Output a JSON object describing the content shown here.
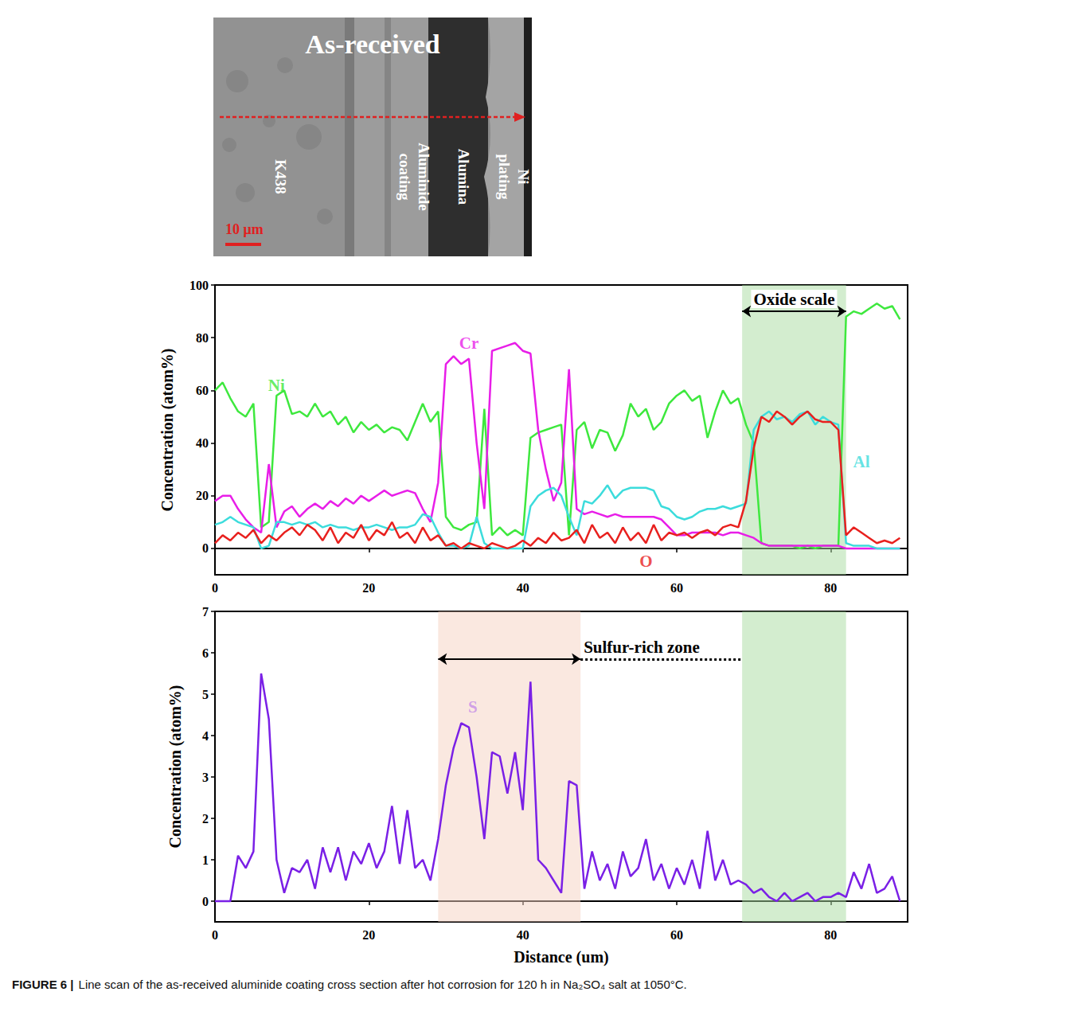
{
  "image": {
    "title": "As-received",
    "labels": [
      "K438",
      "Aluminide coating",
      "Alumina",
      "Ni plating"
    ],
    "scale_bar": "10 μm"
  },
  "caption": {
    "label": "FIGURE 6 |",
    "text": "Line scan of the as-received aluminide coating cross section after hot corrosion for 120 h in Na₂SO₄ salt at 1050°C."
  },
  "chart_data": [
    {
      "type": "line",
      "ylabel": "Concentration (atom%)",
      "xlim": [
        0,
        90
      ],
      "xticks": [
        0,
        20,
        40,
        60,
        80
      ],
      "ylim": [
        -10,
        100
      ],
      "yticks": [
        0,
        20,
        40,
        60,
        80,
        100
      ],
      "x": [
        0,
        1,
        2,
        3,
        4,
        5,
        6,
        7,
        8,
        9,
        10,
        11,
        12,
        13,
        14,
        15,
        16,
        17,
        18,
        19,
        20,
        21,
        22,
        23,
        24,
        25,
        26,
        27,
        28,
        29,
        30,
        31,
        32,
        33,
        34,
        35,
        36,
        37,
        38,
        39,
        40,
        41,
        42,
        43,
        44,
        45,
        46,
        47,
        48,
        49,
        50,
        51,
        52,
        53,
        54,
        55,
        56,
        57,
        58,
        59,
        60,
        61,
        62,
        63,
        64,
        65,
        66,
        67,
        68,
        69,
        70,
        71,
        72,
        73,
        74,
        75,
        76,
        77,
        78,
        79,
        80,
        81,
        82,
        83,
        84,
        85,
        86,
        87,
        88,
        89
      ],
      "series": [
        {
          "name": "Ni",
          "color": "#3ee83e",
          "values": [
            60,
            63,
            57,
            52,
            50,
            55,
            8,
            10,
            58,
            60,
            51,
            52,
            50,
            55,
            50,
            52,
            47,
            50,
            44,
            48,
            45,
            47,
            44,
            46,
            45,
            41,
            48,
            55,
            48,
            52,
            12,
            8,
            7,
            9,
            10,
            53,
            5,
            8,
            5,
            7,
            5,
            42,
            44,
            45,
            46,
            47,
            5,
            45,
            48,
            38,
            45,
            44,
            37,
            43,
            55,
            50,
            53,
            45,
            48,
            55,
            58,
            60,
            56,
            58,
            42,
            52,
            60,
            55,
            57,
            47,
            40,
            2,
            1,
            1,
            1,
            1,
            0,
            1,
            0,
            1,
            1,
            1,
            88,
            90,
            89,
            91,
            93,
            91,
            92,
            87
          ]
        },
        {
          "name": "Cr",
          "color": "#e81ee8",
          "values": [
            18,
            20,
            20,
            15,
            11,
            8,
            6,
            32,
            8,
            14,
            16,
            12,
            15,
            17,
            15,
            18,
            16,
            19,
            17,
            20,
            18,
            20,
            22,
            20,
            21,
            22,
            21,
            15,
            10,
            25,
            70,
            73,
            70,
            72,
            40,
            15,
            75,
            76,
            77,
            78,
            75,
            74,
            45,
            30,
            18,
            25,
            68,
            15,
            13,
            14,
            13,
            12,
            13,
            12,
            12,
            12,
            12,
            12,
            11,
            8,
            5,
            5,
            6,
            6,
            6,
            6,
            5,
            6,
            6,
            5,
            4,
            2,
            1,
            1,
            1,
            1,
            1,
            1,
            1,
            1,
            1,
            1,
            0,
            0,
            0,
            0,
            0,
            0,
            0,
            0
          ]
        },
        {
          "name": "Al",
          "color": "#3cdcdc",
          "values": [
            9,
            10,
            12,
            10,
            9,
            8,
            0,
            1,
            10,
            10,
            9,
            10,
            9,
            10,
            8,
            9,
            8,
            8,
            7,
            8,
            8,
            9,
            8,
            7,
            8,
            8,
            9,
            13,
            12,
            6,
            1,
            1,
            0,
            1,
            12,
            2,
            0,
            0,
            0,
            0,
            0,
            16,
            20,
            22,
            23,
            20,
            12,
            5,
            18,
            17,
            20,
            24,
            19,
            22,
            23,
            23,
            23,
            22,
            16,
            15,
            12,
            11,
            12,
            14,
            15,
            15,
            16,
            15,
            16,
            17,
            45,
            50,
            52,
            49,
            50,
            48,
            51,
            52,
            47,
            50,
            48,
            47,
            2,
            1,
            1,
            1,
            0,
            0,
            0,
            0
          ]
        },
        {
          "name": "O",
          "color": "#e8201e",
          "values": [
            2,
            5,
            3,
            6,
            4,
            7,
            2,
            5,
            3,
            6,
            8,
            5,
            9,
            7,
            3,
            8,
            2,
            6,
            4,
            9,
            3,
            7,
            5,
            10,
            4,
            6,
            2,
            8,
            3,
            5,
            1,
            2,
            0,
            2,
            1,
            0,
            2,
            1,
            0,
            1,
            3,
            1,
            4,
            2,
            6,
            3,
            4,
            7,
            2,
            9,
            4,
            6,
            2,
            8,
            3,
            6,
            2,
            9,
            3,
            6,
            5,
            6,
            4,
            6,
            7,
            5,
            8,
            9,
            8,
            18,
            38,
            50,
            48,
            52,
            50,
            47,
            50,
            52,
            49,
            48,
            48,
            45,
            5,
            8,
            6,
            4,
            2,
            3,
            2,
            4
          ]
        }
      ],
      "annotations": [
        {
          "text": "Ni",
          "x": 8,
          "y": 62,
          "color": "#3ee83e"
        },
        {
          "text": "Cr",
          "x": 33,
          "y": 78,
          "color": "#e81ee8"
        },
        {
          "text": "Al",
          "x": 84,
          "y": 33,
          "color": "#3cdcdc"
        },
        {
          "text": "O",
          "x": 56,
          "y": -5,
          "color": "#e8201e"
        }
      ],
      "regions": [
        {
          "label": "Oxide scale",
          "x": [
            68.5,
            82
          ],
          "color": "#a8dca0",
          "arrow_y": 90
        }
      ]
    },
    {
      "type": "line",
      "ylabel": "Concentration (atom%)",
      "xlabel": "Distance (um)",
      "xlim": [
        0,
        90
      ],
      "xticks": [
        0,
        20,
        40,
        60,
        80
      ],
      "ylim": [
        -0.5,
        7
      ],
      "yticks": [
        0,
        1,
        2,
        3,
        4,
        5,
        6,
        7
      ],
      "x": [
        0,
        1,
        2,
        3,
        4,
        5,
        6,
        7,
        8,
        9,
        10,
        11,
        12,
        13,
        14,
        15,
        16,
        17,
        18,
        19,
        20,
        21,
        22,
        23,
        24,
        25,
        26,
        27,
        28,
        29,
        30,
        31,
        32,
        33,
        34,
        35,
        36,
        37,
        38,
        39,
        40,
        41,
        42,
        43,
        44,
        45,
        46,
        47,
        48,
        49,
        50,
        51,
        52,
        53,
        54,
        55,
        56,
        57,
        58,
        59,
        60,
        61,
        62,
        63,
        64,
        65,
        66,
        67,
        68,
        69,
        70,
        71,
        72,
        73,
        74,
        75,
        76,
        77,
        78,
        79,
        80,
        81,
        82,
        83,
        84,
        85,
        86,
        87,
        88,
        89
      ],
      "series": [
        {
          "name": "S",
          "color": "#7a20e6",
          "values": [
            0,
            0,
            0,
            1.1,
            0.8,
            1.2,
            5.5,
            4.4,
            1.0,
            0.2,
            0.8,
            0.7,
            1.0,
            0.3,
            1.3,
            0.7,
            1.3,
            0.5,
            1.2,
            0.9,
            1.4,
            0.8,
            1.2,
            2.3,
            0.9,
            2.2,
            0.8,
            1.0,
            0.5,
            1.5,
            2.8,
            3.7,
            4.3,
            4.2,
            3.0,
            1.5,
            3.6,
            3.5,
            2.6,
            3.6,
            2.2,
            5.3,
            1.0,
            0.8,
            0.5,
            0.2,
            2.9,
            2.8,
            0.3,
            1.2,
            0.5,
            0.9,
            0.3,
            1.2,
            0.6,
            0.8,
            1.5,
            0.5,
            0.9,
            0.3,
            0.8,
            0.4,
            1.0,
            0.3,
            1.7,
            0.5,
            1.0,
            0.4,
            0.5,
            0.4,
            0.2,
            0.3,
            0.1,
            0.0,
            0.2,
            0.0,
            0.1,
            0.2,
            0.0,
            0.1,
            0.1,
            0.2,
            0.1,
            0.7,
            0.3,
            0.9,
            0.2,
            0.3,
            0.6,
            0.0
          ]
        }
      ],
      "annotations": [
        {
          "text": "S",
          "x": 33.5,
          "y": 4.7,
          "color": "#c58ce8"
        }
      ],
      "regions": [
        {
          "label": "Sulfur-rich zone",
          "x": [
            29,
            47.5
          ],
          "color": "#f6d2c2",
          "arrow_y": 5.85,
          "extend_to": 68.5
        },
        {
          "x": [
            68.5,
            82
          ],
          "color": "#a8dca0"
        }
      ]
    }
  ]
}
